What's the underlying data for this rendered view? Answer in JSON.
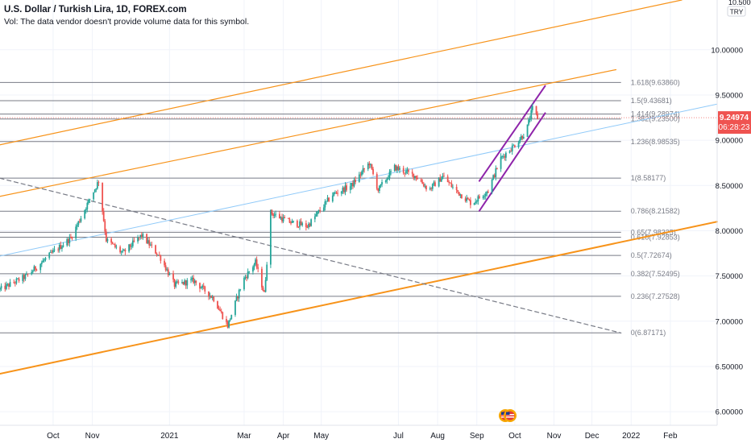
{
  "header": {
    "symbol_title": "U.S. Dollar / Turkish Lira, 1D, FOREX.com",
    "volume_note": "Vol: The data vendor doesn't provide volume data for this symbol."
  },
  "price_scale": {
    "currency": "TRY",
    "top_tick": "10.50000",
    "last_price": "9.24974",
    "countdown": "06:28:23"
  },
  "colors": {
    "up": "#26a69a",
    "down": "#ef5350",
    "channel": "#f7931a",
    "uptrend_channel": "#8e24aa",
    "trendline": "#90caf9",
    "dashed_trend": "#787b86",
    "fib_line": "#787b86",
    "last_price_bg": "#ef5350"
  },
  "chart_data": {
    "type": "candlestick",
    "y_axis": {
      "ticks": [
        "10.00000",
        "9.50000",
        "9.00000",
        "8.50000",
        "8.00000",
        "7.50000",
        "7.00000",
        "6.50000",
        "6.00000"
      ],
      "tick_values": [
        10.0,
        9.5,
        9.0,
        8.5,
        8.0,
        7.5,
        7.0,
        6.5,
        6.0
      ],
      "range": [
        5.85,
        10.55
      ]
    },
    "x_axis": {
      "labels": [
        {
          "text": "Oct",
          "date": "2020-10-01"
        },
        {
          "text": "Nov",
          "date": "2020-11-01"
        },
        {
          "text": "2021",
          "date": "2021-01-01"
        },
        {
          "text": "Mar",
          "date": "2021-03-01"
        },
        {
          "text": "Apr",
          "date": "2021-04-01"
        },
        {
          "text": "May",
          "date": "2021-05-01"
        },
        {
          "text": "Jul",
          "date": "2021-07-01"
        },
        {
          "text": "Aug",
          "date": "2021-08-01"
        },
        {
          "text": "Sep",
          "date": "2021-09-01"
        },
        {
          "text": "Oct",
          "date": "2021-10-01"
        },
        {
          "text": "Nov",
          "date": "2021-11-01"
        },
        {
          "text": "Dec",
          "date": "2021-12-01"
        },
        {
          "text": "2022",
          "date": "2022-01-01"
        },
        {
          "text": "Feb",
          "date": "2022-02-01"
        }
      ],
      "range": [
        "2020-08-20",
        "2022-03-10"
      ]
    },
    "price_path": [
      [
        "2020-08-20",
        7.35
      ],
      [
        "2020-09-10",
        7.5
      ],
      [
        "2020-09-30",
        7.75
      ],
      [
        "2020-10-15",
        7.92
      ],
      [
        "2020-10-30",
        8.35
      ],
      [
        "2020-11-06",
        8.55
      ],
      [
        "2020-11-12",
        7.9
      ],
      [
        "2020-11-25",
        7.75
      ],
      [
        "2020-12-10",
        7.95
      ],
      [
        "2020-12-25",
        7.7
      ],
      [
        "2021-01-05",
        7.4
      ],
      [
        "2021-01-20",
        7.45
      ],
      [
        "2021-02-05",
        7.25
      ],
      [
        "2021-02-16",
        6.95
      ],
      [
        "2021-02-28",
        7.45
      ],
      [
        "2021-03-10",
        7.65
      ],
      [
        "2021-03-17",
        7.3
      ],
      [
        "2021-03-22",
        8.2
      ],
      [
        "2021-04-05",
        8.1
      ],
      [
        "2021-04-20",
        8.05
      ],
      [
        "2021-05-10",
        8.4
      ],
      [
        "2021-05-25",
        8.5
      ],
      [
        "2021-06-08",
        8.75
      ],
      [
        "2021-06-15",
        8.45
      ],
      [
        "2021-06-28",
        8.7
      ],
      [
        "2021-07-15",
        8.6
      ],
      [
        "2021-07-25",
        8.45
      ],
      [
        "2021-08-05",
        8.6
      ],
      [
        "2021-08-15",
        8.45
      ],
      [
        "2021-08-28",
        8.3
      ],
      [
        "2021-09-10",
        8.45
      ],
      [
        "2021-09-20",
        8.8
      ],
      [
        "2021-10-01",
        8.95
      ],
      [
        "2021-10-10",
        9.1
      ],
      [
        "2021-10-15",
        9.35
      ],
      [
        "2021-10-19",
        9.25
      ]
    ],
    "fib_levels": [
      {
        "label": "1.618(9.63860)",
        "value": 9.6386
      },
      {
        "label": "1.5(9.43681)",
        "value": 9.43681
      },
      {
        "label": "1.414(9.28974)",
        "value": 9.28974
      },
      {
        "label": "1.382(9.23500)",
        "value": 9.235
      },
      {
        "label": "1.236(8.98535)",
        "value": 8.98535
      },
      {
        "label": "1(8.58177)",
        "value": 8.58177
      },
      {
        "label": "0.786(8.21582)",
        "value": 8.21582
      },
      {
        "label": "0.65(7.98325)",
        "value": 7.98325
      },
      {
        "label": "0.618(7.92853)",
        "value": 7.92853
      },
      {
        "label": "0.5(7.72674)",
        "value": 7.72674
      },
      {
        "label": "0.382(7.52495)",
        "value": 7.52495
      },
      {
        "label": "0.236(7.27528)",
        "value": 7.27528
      },
      {
        "label": "0(6.87171)",
        "value": 6.87171
      }
    ],
    "fib_span": [
      "2020-08-20",
      "2021-12-24"
    ],
    "drawings": [
      {
        "name": "orange-channel-upper",
        "color_key": "channel",
        "width": 1.2,
        "dash": false,
        "p1": [
          "2020-08-20",
          8.95
        ],
        "p2": [
          "2022-02-10",
          10.55
        ]
      },
      {
        "name": "orange-channel-middle",
        "color_key": "channel",
        "width": 1.2,
        "dash": false,
        "p1": [
          "2020-08-20",
          8.38
        ],
        "p2": [
          "2021-12-20",
          9.78
        ]
      },
      {
        "name": "orange-channel-lower",
        "color_key": "channel",
        "width": 2,
        "dash": false,
        "p1": [
          "2020-08-20",
          6.42
        ],
        "p2": [
          "2022-03-10",
          8.1
        ]
      },
      {
        "name": "dashed-trendline",
        "color_key": "dashed_trend",
        "width": 1.2,
        "dash": true,
        "p1": [
          "2020-08-20",
          8.58
        ],
        "p2": [
          "2021-12-24",
          6.87
        ]
      },
      {
        "name": "blue-trendline",
        "color_key": "trendline",
        "width": 1,
        "dash": false,
        "p1": [
          "2020-08-20",
          7.72
        ],
        "p2": [
          "2022-03-10",
          9.4
        ]
      },
      {
        "name": "purple-channel-upper",
        "color_key": "uptrend_channel",
        "width": 2,
        "dash": false,
        "p1": [
          "2021-09-03",
          8.55
        ],
        "p2": [
          "2021-10-25",
          9.6
        ]
      },
      {
        "name": "purple-channel-lower",
        "color_key": "uptrend_channel",
        "width": 2,
        "dash": false,
        "p1": [
          "2021-09-03",
          8.22
        ],
        "p2": [
          "2021-10-25",
          9.3
        ]
      }
    ]
  }
}
